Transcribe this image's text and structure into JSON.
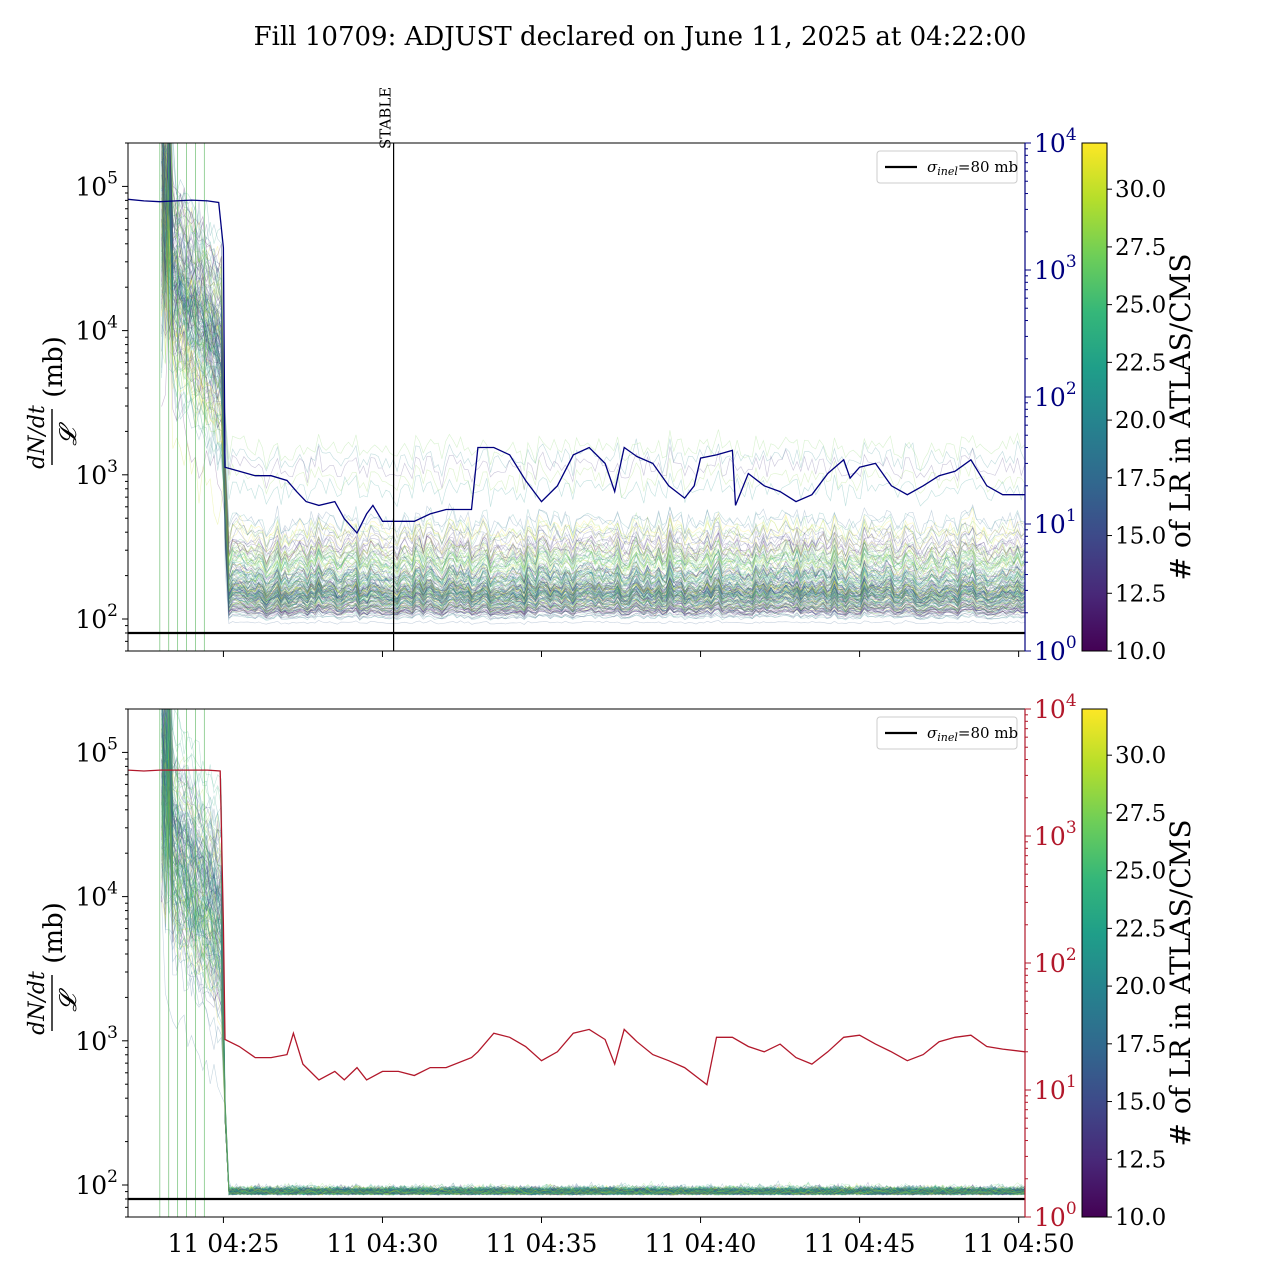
{
  "figure": {
    "title": "Fill 10709: ADJUST declared on June 11, 2025 at 04:22:00",
    "colors": {
      "bg": "#ffffff",
      "axis": "#000000",
      "navy": "#00007f",
      "red": "#b2182b"
    },
    "colormap": [
      "#440154",
      "#482878",
      "#3e4989",
      "#31688e",
      "#26828e",
      "#1f9e89",
      "#35b779",
      "#6ece58",
      "#b5de2b",
      "#fde725"
    ]
  },
  "chart_data": [
    {
      "type": "line",
      "panel": "top",
      "ylabel_num": "dN/dt",
      "ylabel_den": "𝓛",
      "ylabel_unit": "(mb)",
      "yscale": "log",
      "ylim": [
        60,
        200000
      ],
      "yticks": [
        {
          "value": 100,
          "base": "10",
          "exp": "2"
        },
        {
          "value": 1000,
          "base": "10",
          "exp": "3"
        },
        {
          "value": 10000,
          "base": "10",
          "exp": "4"
        },
        {
          "value": 100000,
          "base": "10",
          "exp": "5"
        }
      ],
      "secondary_axis": {
        "color": "#00007f",
        "yscale": "log",
        "ylim": [
          1,
          10000
        ],
        "yticks": [
          {
            "value": 1,
            "base": "10",
            "exp": "0"
          },
          {
            "value": 10,
            "base": "10",
            "exp": "1"
          },
          {
            "value": 100,
            "base": "10",
            "exp": "2"
          },
          {
            "value": 1000,
            "base": "10",
            "exp": "3"
          },
          {
            "value": 10000,
            "base": "10",
            "exp": "4"
          }
        ]
      },
      "xlim_minutes": [
        22.0,
        50.2
      ],
      "xticks": [
        {
          "value": 25,
          "label": ""
        },
        {
          "value": 30,
          "label": ""
        },
        {
          "value": 35,
          "label": ""
        },
        {
          "value": 40,
          "label": ""
        },
        {
          "value": 45,
          "label": ""
        },
        {
          "value": 50,
          "label": ""
        }
      ],
      "stable_marker": {
        "minute": 30.35,
        "label": "STABLE"
      },
      "reference_line": {
        "value": 80,
        "label_sym": "σ",
        "label_sub": "inel",
        "label_rest": "=80 mb"
      },
      "band": {
        "series_count": 170,
        "pre_drop_median": 30000,
        "post_drop_median": 150,
        "baseline": 85,
        "drop_minute": 25.0
      },
      "secondary_series": {
        "name": "",
        "points": [
          [
            22.0,
            3600
          ],
          [
            22.5,
            3500
          ],
          [
            23.0,
            3450
          ],
          [
            23.5,
            3500
          ],
          [
            24.0,
            3550
          ],
          [
            24.5,
            3500
          ],
          [
            24.85,
            3400
          ],
          [
            25.0,
            1500
          ],
          [
            25.05,
            28
          ],
          [
            25.5,
            26
          ],
          [
            26.0,
            24
          ],
          [
            26.5,
            24
          ],
          [
            27.0,
            22
          ],
          [
            27.3,
            18
          ],
          [
            27.6,
            15
          ],
          [
            28.0,
            14
          ],
          [
            28.5,
            15
          ],
          [
            28.8,
            11
          ],
          [
            29.2,
            8.5
          ],
          [
            29.5,
            12
          ],
          [
            29.7,
            14
          ],
          [
            30.0,
            10.5
          ],
          [
            30.5,
            10.5
          ],
          [
            31.0,
            10.5
          ],
          [
            31.5,
            12
          ],
          [
            32.0,
            13
          ],
          [
            32.8,
            13
          ],
          [
            33.0,
            40
          ],
          [
            33.5,
            40
          ],
          [
            34.0,
            35
          ],
          [
            34.5,
            22
          ],
          [
            35.0,
            15
          ],
          [
            35.5,
            20
          ],
          [
            36.0,
            35
          ],
          [
            36.5,
            40
          ],
          [
            37.0,
            30
          ],
          [
            37.3,
            18
          ],
          [
            37.6,
            40
          ],
          [
            38.0,
            34
          ],
          [
            38.5,
            30
          ],
          [
            39.0,
            20
          ],
          [
            39.5,
            16
          ],
          [
            39.8,
            20
          ],
          [
            40.0,
            33
          ],
          [
            40.5,
            35
          ],
          [
            41.0,
            38
          ],
          [
            41.1,
            14
          ],
          [
            41.5,
            25
          ],
          [
            42.0,
            20
          ],
          [
            42.5,
            18
          ],
          [
            43.0,
            15
          ],
          [
            43.5,
            17
          ],
          [
            44.0,
            25
          ],
          [
            44.5,
            32
          ],
          [
            44.7,
            23
          ],
          [
            45.0,
            28
          ],
          [
            45.5,
            30
          ],
          [
            46.0,
            20
          ],
          [
            46.5,
            17
          ],
          [
            47.0,
            20
          ],
          [
            47.5,
            24
          ],
          [
            48.0,
            26
          ],
          [
            48.5,
            32
          ],
          [
            49.0,
            20
          ],
          [
            49.5,
            17
          ],
          [
            50.2,
            17
          ]
        ]
      },
      "legend": {
        "position": "upper right"
      },
      "colorbar": {
        "label": "# of LR in ATLAS/CMS",
        "range": [
          10.0,
          32.0
        ],
        "ticks": [
          "10.0",
          "12.5",
          "15.0",
          "17.5",
          "20.0",
          "22.5",
          "25.0",
          "27.5",
          "30.0"
        ]
      }
    },
    {
      "type": "line",
      "panel": "bottom",
      "ylabel_num": "dN/dt",
      "ylabel_den": "𝓛",
      "ylabel_unit": "(mb)",
      "yscale": "log",
      "ylim": [
        60,
        200000
      ],
      "yticks": [
        {
          "value": 100,
          "base": "10",
          "exp": "2"
        },
        {
          "value": 1000,
          "base": "10",
          "exp": "3"
        },
        {
          "value": 10000,
          "base": "10",
          "exp": "4"
        },
        {
          "value": 100000,
          "base": "10",
          "exp": "5"
        }
      ],
      "secondary_axis": {
        "color": "#b2182b",
        "yscale": "log",
        "ylim": [
          1,
          10000
        ],
        "yticks": [
          {
            "value": 1,
            "base": "10",
            "exp": "0"
          },
          {
            "value": 10,
            "base": "10",
            "exp": "1"
          },
          {
            "value": 100,
            "base": "10",
            "exp": "2"
          },
          {
            "value": 1000,
            "base": "10",
            "exp": "3"
          },
          {
            "value": 10000,
            "base": "10",
            "exp": "4"
          }
        ]
      },
      "xlim_minutes": [
        22.0,
        50.2
      ],
      "xticks": [
        {
          "value": 25,
          "label": "11 04:25"
        },
        {
          "value": 30,
          "label": "11 04:30"
        },
        {
          "value": 35,
          "label": "11 04:35"
        },
        {
          "value": 40,
          "label": "11 04:40"
        },
        {
          "value": 45,
          "label": "11 04:45"
        },
        {
          "value": 50,
          "label": "11 04:50"
        }
      ],
      "reference_line": {
        "value": 80,
        "label_sym": "σ",
        "label_sub": "inel",
        "label_rest": "=80 mb"
      },
      "band": {
        "series_count": 170,
        "pre_drop_median": 30000,
        "post_drop_median": 88,
        "baseline": 82,
        "drop_minute": 25.0
      },
      "secondary_series": {
        "name": "",
        "points": [
          [
            22.0,
            3300
          ],
          [
            22.5,
            3250
          ],
          [
            23.0,
            3300
          ],
          [
            23.5,
            3300
          ],
          [
            24.0,
            3300
          ],
          [
            24.5,
            3300
          ],
          [
            24.9,
            3250
          ],
          [
            25.0,
            200
          ],
          [
            25.05,
            25
          ],
          [
            25.5,
            22
          ],
          [
            26.0,
            18
          ],
          [
            26.5,
            18
          ],
          [
            27.0,
            19
          ],
          [
            27.2,
            28
          ],
          [
            27.5,
            16
          ],
          [
            28.0,
            12
          ],
          [
            28.5,
            14
          ],
          [
            28.8,
            12
          ],
          [
            29.2,
            15
          ],
          [
            29.5,
            12
          ],
          [
            30.0,
            14
          ],
          [
            30.5,
            14
          ],
          [
            31.0,
            13
          ],
          [
            31.5,
            15
          ],
          [
            32.0,
            15
          ],
          [
            32.8,
            18
          ],
          [
            33.0,
            20
          ],
          [
            33.5,
            28
          ],
          [
            34.0,
            26
          ],
          [
            34.5,
            22
          ],
          [
            35.0,
            17
          ],
          [
            35.5,
            20
          ],
          [
            36.0,
            28
          ],
          [
            36.5,
            30
          ],
          [
            37.0,
            25
          ],
          [
            37.3,
            16
          ],
          [
            37.6,
            30
          ],
          [
            38.0,
            24
          ],
          [
            38.5,
            19
          ],
          [
            39.0,
            17
          ],
          [
            39.5,
            15
          ],
          [
            40.0,
            12
          ],
          [
            40.2,
            11
          ],
          [
            40.5,
            26
          ],
          [
            41.0,
            26
          ],
          [
            41.5,
            22
          ],
          [
            42.0,
            20
          ],
          [
            42.5,
            23
          ],
          [
            43.0,
            18
          ],
          [
            43.5,
            16
          ],
          [
            44.0,
            20
          ],
          [
            44.5,
            26
          ],
          [
            45.0,
            27
          ],
          [
            45.5,
            23
          ],
          [
            46.0,
            20
          ],
          [
            46.5,
            17
          ],
          [
            47.0,
            19
          ],
          [
            47.5,
            24
          ],
          [
            48.0,
            26
          ],
          [
            48.5,
            27
          ],
          [
            49.0,
            22
          ],
          [
            49.5,
            21
          ],
          [
            50.2,
            20
          ]
        ]
      },
      "legend": {
        "position": "upper right"
      },
      "colorbar": {
        "label": "# of LR in ATLAS/CMS",
        "range": [
          10.0,
          32.0
        ],
        "ticks": [
          "10.0",
          "12.5",
          "15.0",
          "17.5",
          "20.0",
          "22.5",
          "25.0",
          "27.5",
          "30.0"
        ]
      }
    }
  ]
}
